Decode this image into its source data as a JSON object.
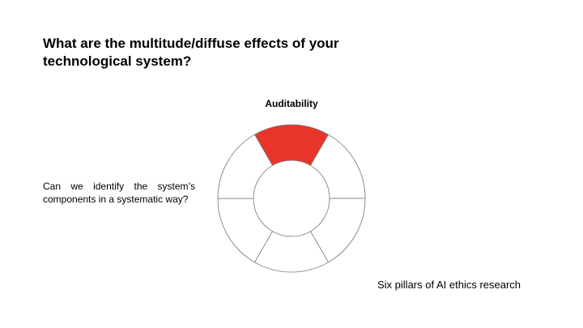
{
  "slide": {
    "title": "What are the multitude/diffuse effects of your technological system?",
    "question": "Can we identify the system’s components in a systematic way?",
    "caption": "Six pillars of AI ethics research"
  },
  "wheel": {
    "active_label": "Auditability",
    "segment_count": 6,
    "active_index": 0,
    "active_color": "#e8352a",
    "outline_color": "#777777"
  }
}
